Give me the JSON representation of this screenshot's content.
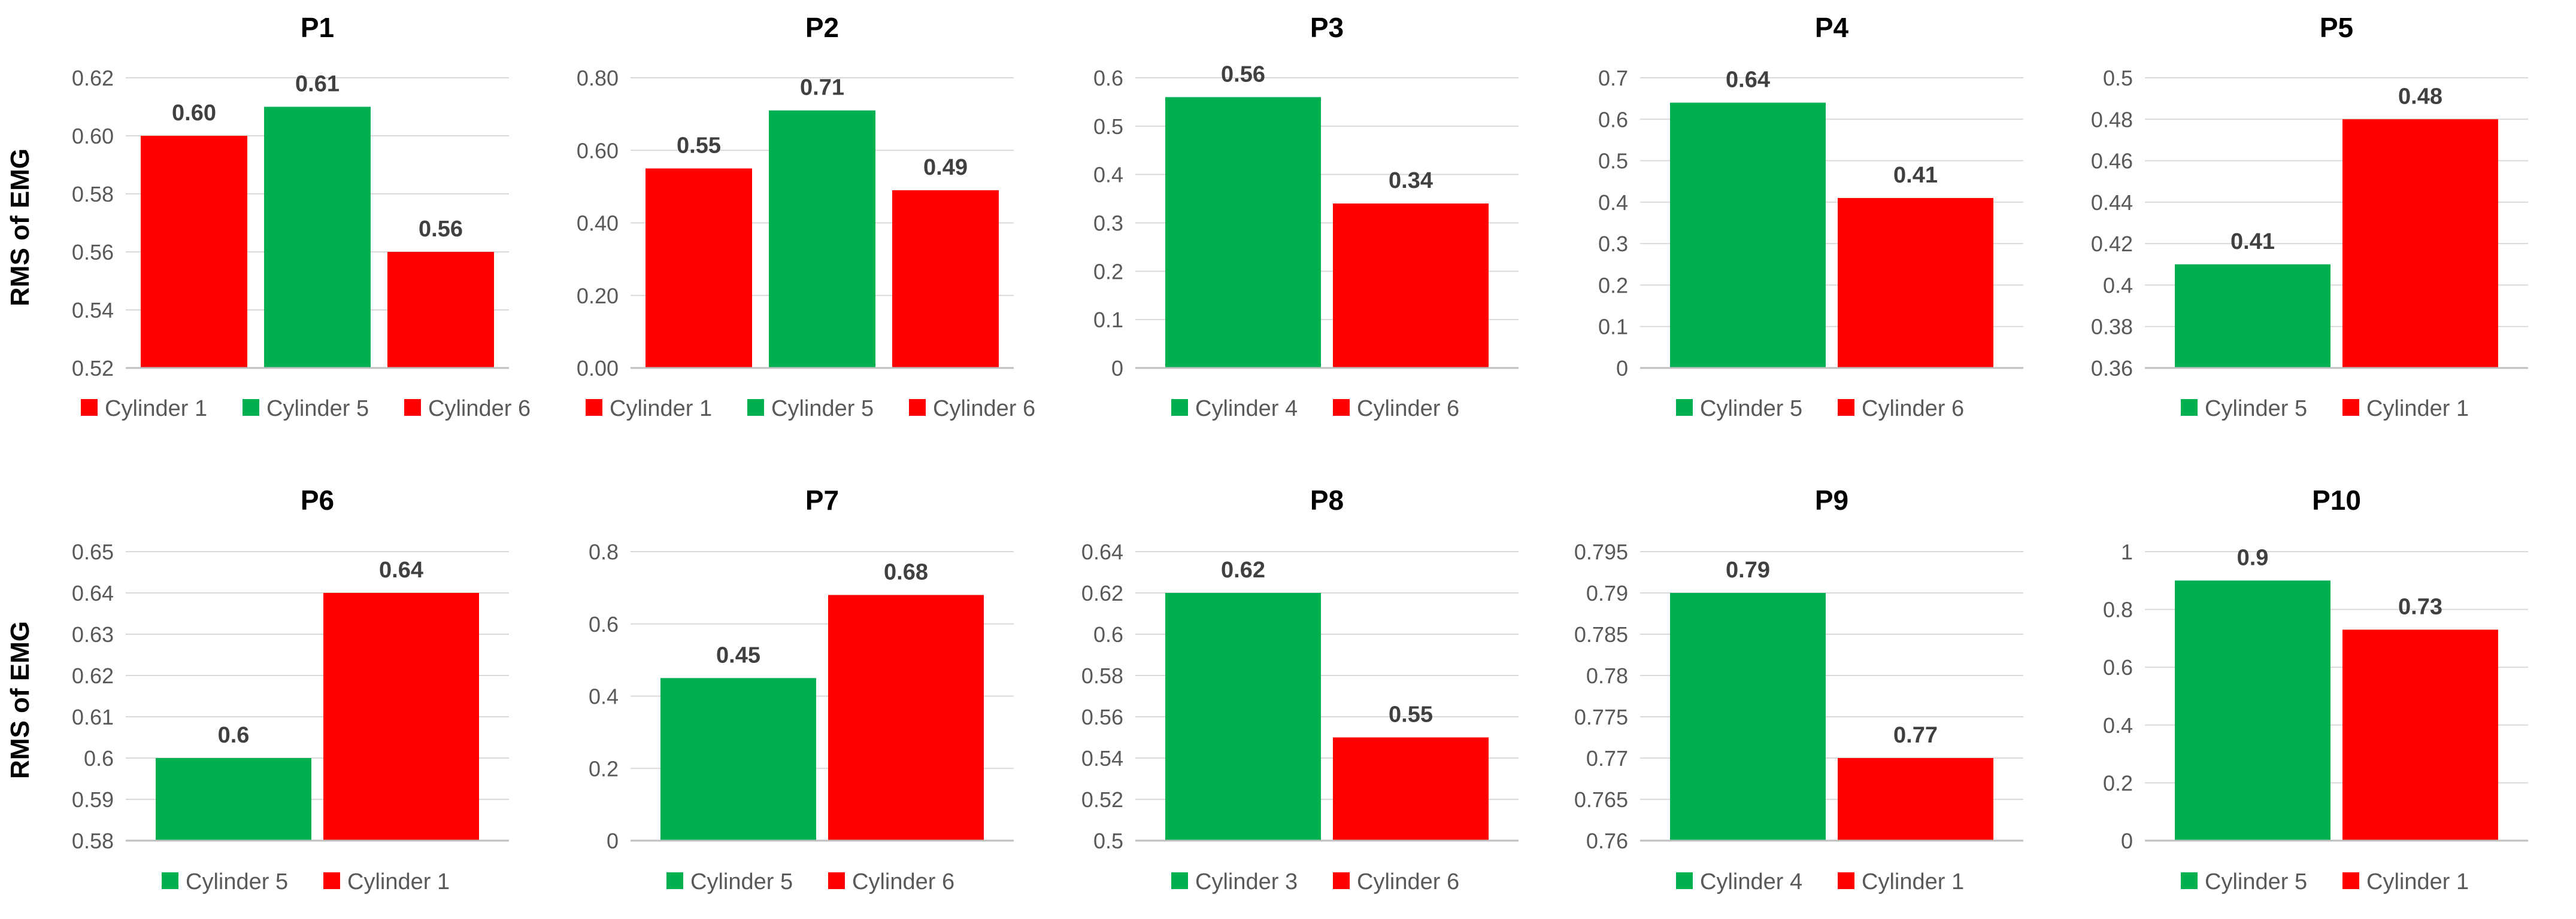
{
  "ylabel": "RMS of EMG",
  "colors": {
    "green": "#00B050",
    "red": "#FF0000",
    "grid": "#D9D9D9",
    "axis": "#BFBFBF",
    "text": "#595959",
    "title": "#000000"
  },
  "chart_data": [
    {
      "type": "bar",
      "title": "P1",
      "ylim": [
        0.52,
        0.62
      ],
      "ticks": [
        "0.52",
        "0.54",
        "0.56",
        "0.58",
        "0.60",
        "0.62"
      ],
      "bars": [
        {
          "name": "Cylinder 1",
          "value": 0.6,
          "label": "0.60",
          "color": "red"
        },
        {
          "name": "Cylinder 5",
          "value": 0.61,
          "label": "0.61",
          "color": "green"
        },
        {
          "name": "Cylinder 6",
          "value": 0.56,
          "label": "0.56",
          "color": "red"
        }
      ]
    },
    {
      "type": "bar",
      "title": "P2",
      "ylim": [
        0,
        0.8
      ],
      "ticks": [
        "0.00",
        "0.20",
        "0.40",
        "0.60",
        "0.80"
      ],
      "bars": [
        {
          "name": "Cylinder 1",
          "value": 0.55,
          "label": "0.55",
          "color": "red"
        },
        {
          "name": "Cylinder 5",
          "value": 0.71,
          "label": "0.71",
          "color": "green"
        },
        {
          "name": "Cylinder 6",
          "value": 0.49,
          "label": "0.49",
          "color": "red"
        }
      ]
    },
    {
      "type": "bar",
      "title": "P3",
      "ylim": [
        0,
        0.6
      ],
      "ticks": [
        "0",
        "0.1",
        "0.2",
        "0.3",
        "0.4",
        "0.5",
        "0.6"
      ],
      "bars": [
        {
          "name": "Cylinder 4",
          "value": 0.56,
          "label": "0.56",
          "color": "green"
        },
        {
          "name": "Cylinder 6",
          "value": 0.34,
          "label": "0.34",
          "color": "red"
        }
      ]
    },
    {
      "type": "bar",
      "title": "P4",
      "ylim": [
        0,
        0.7
      ],
      "ticks": [
        "0",
        "0.1",
        "0.2",
        "0.3",
        "0.4",
        "0.5",
        "0.6",
        "0.7"
      ],
      "bars": [
        {
          "name": "Cylinder 5",
          "value": 0.64,
          "label": "0.64",
          "color": "green"
        },
        {
          "name": "Cylinder 6",
          "value": 0.41,
          "label": "0.41",
          "color": "red"
        }
      ]
    },
    {
      "type": "bar",
      "title": "P5",
      "ylim": [
        0.36,
        0.5
      ],
      "ticks": [
        "0.36",
        "0.38",
        "0.4",
        "0.42",
        "0.44",
        "0.46",
        "0.48",
        "0.5"
      ],
      "bars": [
        {
          "name": "Cylinder 5",
          "value": 0.41,
          "label": "0.41",
          "color": "green"
        },
        {
          "name": "Cylinder 1",
          "value": 0.48,
          "label": "0.48",
          "color": "red"
        }
      ]
    },
    {
      "type": "bar",
      "title": "P6",
      "ylim": [
        0.58,
        0.65
      ],
      "ticks": [
        "0.58",
        "0.59",
        "0.6",
        "0.61",
        "0.62",
        "0.63",
        "0.64",
        "0.65"
      ],
      "bars": [
        {
          "name": "Cylinder 5",
          "value": 0.6,
          "label": "0.6",
          "color": "green"
        },
        {
          "name": "Cylinder 1",
          "value": 0.64,
          "label": "0.64",
          "color": "red"
        }
      ]
    },
    {
      "type": "bar",
      "title": "P7",
      "ylim": [
        0,
        0.8
      ],
      "ticks": [
        "0",
        "0.2",
        "0.4",
        "0.6",
        "0.8"
      ],
      "bars": [
        {
          "name": "Cylinder 5",
          "value": 0.45,
          "label": "0.45",
          "color": "green"
        },
        {
          "name": "Cylinder 6",
          "value": 0.68,
          "label": "0.68",
          "color": "red"
        }
      ]
    },
    {
      "type": "bar",
      "title": "P8",
      "ylim": [
        0.5,
        0.64
      ],
      "ticks": [
        "0.5",
        "0.52",
        "0.54",
        "0.56",
        "0.58",
        "0.6",
        "0.62",
        "0.64"
      ],
      "bars": [
        {
          "name": "Cylinder 3",
          "value": 0.62,
          "label": "0.62",
          "color": "green"
        },
        {
          "name": "Cylinder 6",
          "value": 0.55,
          "label": "0.55",
          "color": "red"
        }
      ]
    },
    {
      "type": "bar",
      "title": "P9",
      "ylim": [
        0.76,
        0.795
      ],
      "ticks": [
        "0.76",
        "0.765",
        "0.77",
        "0.775",
        "0.78",
        "0.785",
        "0.79",
        "0.795"
      ],
      "bars": [
        {
          "name": "Cylinder 4",
          "value": 0.79,
          "label": "0.79",
          "color": "green"
        },
        {
          "name": "Cylinder 1",
          "value": 0.77,
          "label": "0.77",
          "color": "red"
        }
      ]
    },
    {
      "type": "bar",
      "title": "P10",
      "ylim": [
        0,
        1
      ],
      "ticks": [
        "0",
        "0.2",
        "0.4",
        "0.6",
        "0.8",
        "1"
      ],
      "bars": [
        {
          "name": "Cylinder 5",
          "value": 0.9,
          "label": "0.9",
          "color": "green"
        },
        {
          "name": "Cylinder 1",
          "value": 0.73,
          "label": "0.73",
          "color": "red"
        }
      ]
    }
  ]
}
